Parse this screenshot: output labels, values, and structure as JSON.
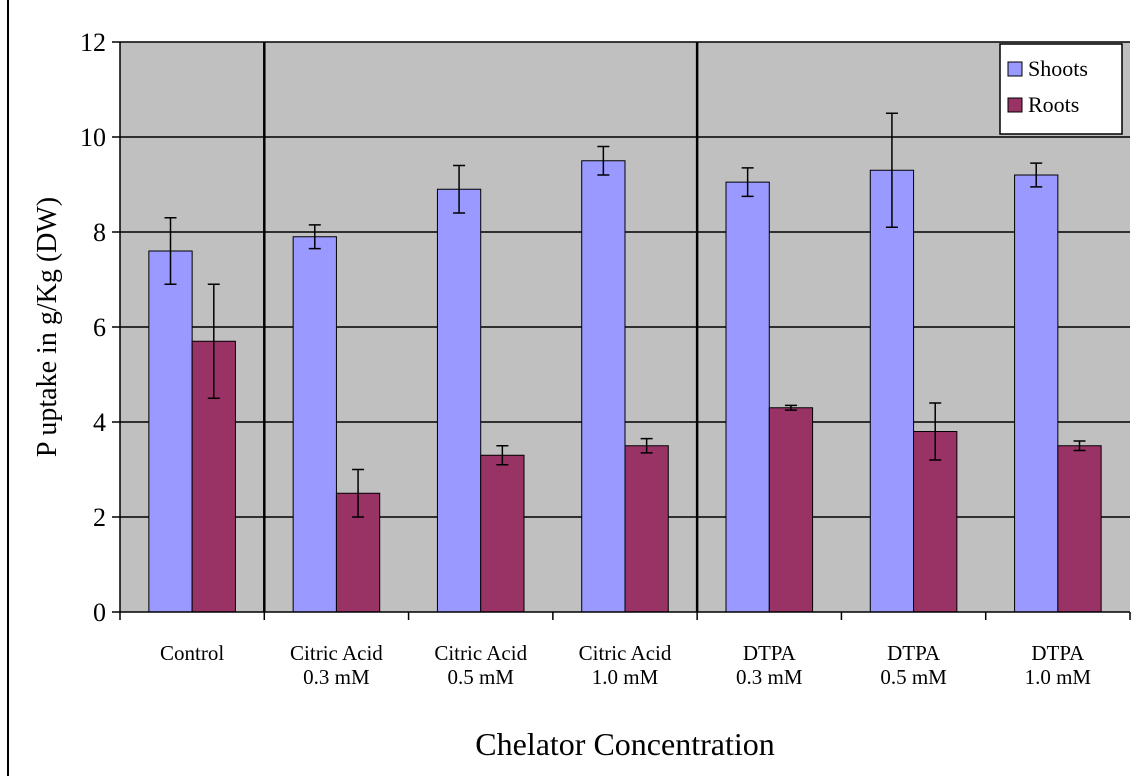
{
  "chart_data": {
    "type": "bar",
    "title": "",
    "xlabel": "Chelator Concentration",
    "ylabel": "P uptake in g/Kg (DW)",
    "ylim": [
      0,
      12
    ],
    "yticks": [
      "0",
      "2",
      "4",
      "6",
      "8",
      "10",
      "12"
    ],
    "grid": true,
    "legend_position": "top-right",
    "categories": [
      [
        "Control"
      ],
      [
        "Citric Acid",
        "0.3 mM"
      ],
      [
        "Citric Acid",
        "0.5 mM"
      ],
      [
        "Citric Acid",
        "1.0 mM"
      ],
      [
        "DTPA",
        "0.3 mM"
      ],
      [
        "DTPA",
        "0.5 mM"
      ],
      [
        "DTPA",
        "1.0 mM"
      ]
    ],
    "series": [
      {
        "name": "Shoots",
        "color": "#9999ff",
        "values": [
          7.6,
          7.9,
          8.9,
          9.5,
          9.05,
          9.3,
          9.2
        ],
        "errors": [
          0.7,
          0.25,
          0.5,
          0.3,
          0.3,
          1.2,
          0.25
        ]
      },
      {
        "name": "Roots",
        "color": "#993366",
        "values": [
          5.7,
          2.5,
          3.3,
          3.5,
          4.3,
          3.8,
          3.5
        ],
        "errors": [
          1.2,
          0.5,
          0.2,
          0.15,
          0.05,
          0.6,
          0.1
        ]
      }
    ],
    "group_separators_after": [
      0,
      3
    ],
    "plot_background": "#c0c0c0"
  }
}
